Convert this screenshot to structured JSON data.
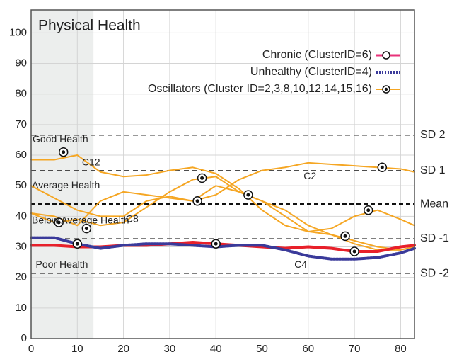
{
  "chart_data": {
    "type": "line",
    "title": "Physical Health",
    "x": [
      0,
      5,
      10,
      15,
      20,
      25,
      30,
      35,
      40,
      45,
      50,
      55,
      60,
      65,
      70,
      75,
      80,
      83
    ],
    "xlim": [
      0,
      83
    ],
    "xticks": [
      0,
      10,
      20,
      30,
      40,
      50,
      60,
      70,
      80
    ],
    "ylim": [
      0,
      107.5
    ],
    "yticks": [
      0,
      10,
      20,
      30,
      40,
      50,
      60,
      70,
      80,
      90,
      100
    ],
    "grid": true,
    "shaded_x": [
      0,
      13.5
    ],
    "series": [
      {
        "name": "Chronic (ClusterID=6)",
        "color": "#e8202a",
        "legend_color": "#e8327a",
        "style": "solid",
        "values": [
          30.5,
          30.5,
          30,
          30,
          30.5,
          30.5,
          31,
          31.5,
          31,
          30.5,
          30,
          29.5,
          30,
          29.5,
          28.5,
          28.5,
          30,
          30.5
        ]
      },
      {
        "name": "Unhealthy (ClusterID=4)",
        "color": "#3a3a9a",
        "style": "dotted",
        "values": [
          33,
          33,
          31,
          29.5,
          30.5,
          31,
          31,
          30.5,
          30,
          30.5,
          30.5,
          29,
          27,
          26,
          26,
          26.5,
          28,
          29.5
        ]
      },
      {
        "name": "Oscillators (Cluster ID=2,3,8,10,12,14,15,16)",
        "color": "#f5a623",
        "style": "solid",
        "lines": [
          [
            58.5,
            58.5,
            60,
            54.5,
            53,
            53.5,
            55,
            56,
            54,
            49,
            42,
            37,
            35,
            36,
            40,
            42,
            39,
            37
          ],
          [
            50,
            46,
            42,
            40,
            40,
            45,
            46.5,
            45,
            50,
            48,
            45,
            42,
            37,
            34,
            31,
            29,
            29,
            30
          ],
          [
            41,
            40,
            37,
            45,
            48,
            47,
            46,
            45,
            47,
            52,
            55,
            56,
            57.5,
            57,
            56.5,
            56,
            55.5,
            54.5
          ],
          [
            41,
            38,
            39,
            37,
            38,
            43,
            48,
            52,
            53,
            48,
            45,
            40,
            35,
            34,
            32,
            30,
            29,
            30
          ]
        ]
      }
    ],
    "markers": {
      "x": [
        7,
        12,
        6,
        10,
        36,
        37,
        40,
        47,
        68,
        70,
        73,
        76
      ],
      "y": [
        61,
        36,
        38,
        31,
        45,
        52.5,
        31,
        47,
        33.5,
        28.5,
        42,
        56
      ]
    },
    "reference_lines": [
      {
        "value": 66.5,
        "label": "SD 2"
      },
      {
        "value": 55,
        "label": "SD 1"
      },
      {
        "value": 44,
        "label": "Mean"
      },
      {
        "value": 32.7,
        "label": "SD -1"
      },
      {
        "value": 21.3,
        "label": "SD -2"
      }
    ],
    "annotations": [
      "Good Health",
      "Average Health",
      "Below Average Health",
      "Poor Health",
      "C12",
      "C8",
      "C2",
      "C4"
    ]
  }
}
